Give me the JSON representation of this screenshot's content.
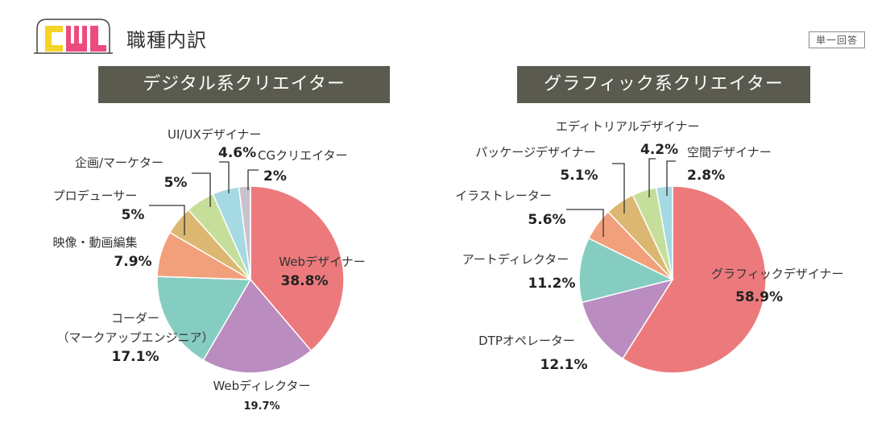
{
  "header": {
    "title": "職種内訳",
    "badge": "単一回答"
  },
  "logo": {
    "text": "CWL"
  },
  "colors": {
    "header_bg": "#5b5a4f",
    "slice_red": "#ec7a7c",
    "slice_purple": "#ba8cc0",
    "slice_teal": "#86cdc1",
    "slice_orange": "#f2a07c",
    "slice_tan": "#dcb771",
    "slice_green": "#c5df9a",
    "slice_blue": "#a5d9e4",
    "slice_gray": "#c9c2cc"
  },
  "chart_data": [
    {
      "type": "pie",
      "title": "デジタル系クリエイター",
      "slices": [
        {
          "label": "Webデザイナー",
          "display": "38.8%",
          "value": 38.8,
          "color": "#ec7a7c"
        },
        {
          "label": "Webディレクター",
          "display": "19.7%",
          "value": 19.7,
          "color": "#ba8cc0"
        },
        {
          "label": "コーダー\n（マークアップエンジニア）",
          "display": "17.1%",
          "value": 17.1,
          "color": "#86cdc1"
        },
        {
          "label": "映像・動画編集",
          "display": "7.9%",
          "value": 7.9,
          "color": "#f2a07c"
        },
        {
          "label": "プロデューサー",
          "display": "5%",
          "value": 5,
          "color": "#dcb771"
        },
        {
          "label": "企画/マーケター",
          "display": "5%",
          "value": 5,
          "color": "#c5df9a"
        },
        {
          "label": "UI/UXデザイナー",
          "display": "4.6%",
          "value": 4.6,
          "color": "#a5d9e4"
        },
        {
          "label": "CGクリエイター",
          "display": "2%",
          "value": 2,
          "color": "#c9c2cc"
        }
      ]
    },
    {
      "type": "pie",
      "title": "グラフィック系クリエイター",
      "slices": [
        {
          "label": "グラフィックデザイナー",
          "display": "58.9%",
          "value": 58.9,
          "color": "#ec7a7c"
        },
        {
          "label": "DTPオペレーター",
          "display": "12.1%",
          "value": 12.1,
          "color": "#ba8cc0"
        },
        {
          "label": "アートディレクター",
          "display": "11.2%",
          "value": 11.2,
          "color": "#86cdc1"
        },
        {
          "label": "イラストレーター",
          "display": "5.6%",
          "value": 5.6,
          "color": "#f2a07c"
        },
        {
          "label": "パッケージデザイナー",
          "display": "5.1%",
          "value": 5.1,
          "color": "#dcb771"
        },
        {
          "label": "エディトリアルデザイナー",
          "display": "4.2%",
          "value": 4.2,
          "color": "#c5df9a"
        },
        {
          "label": "空間デザイナー",
          "display": "2.8%",
          "value": 2.8,
          "color": "#a5d9e4"
        }
      ]
    }
  ]
}
